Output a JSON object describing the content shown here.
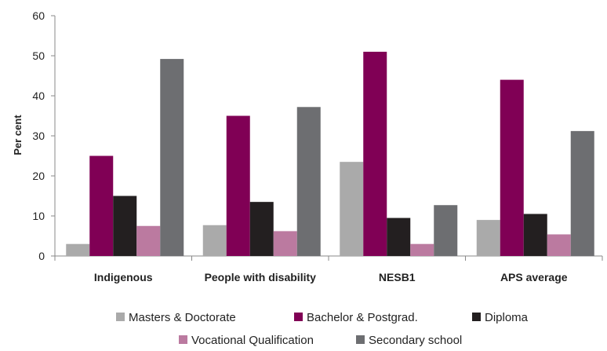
{
  "chart_data": {
    "type": "bar",
    "title": "",
    "xlabel": "",
    "ylabel": "Per cent",
    "ylim": [
      0,
      60
    ],
    "yticks": [
      0,
      10,
      20,
      30,
      40,
      50,
      60
    ],
    "grid": false,
    "legend_position": "bottom",
    "categories": [
      "Indigenous",
      "People with disability",
      "NESB1",
      "APS average"
    ],
    "series": [
      {
        "name": "Masters & Doctorate",
        "color": "#aaaaaa",
        "values": [
          3,
          7.7,
          23.5,
          9
        ]
      },
      {
        "name": "Bachelor & Postgrad.",
        "color": "#800055",
        "values": [
          25,
          35,
          51,
          44
        ]
      },
      {
        "name": "Diploma",
        "color": "#231f20",
        "values": [
          15,
          13.5,
          9.5,
          10.5
        ]
      },
      {
        "name": "Vocational Qualification",
        "color": "#bb7aa0",
        "values": [
          7.5,
          6.2,
          3,
          5.4
        ]
      },
      {
        "name": "Secondary school",
        "color": "#6d6e71",
        "values": [
          49.2,
          37.2,
          12.7,
          31.2
        ]
      }
    ]
  }
}
